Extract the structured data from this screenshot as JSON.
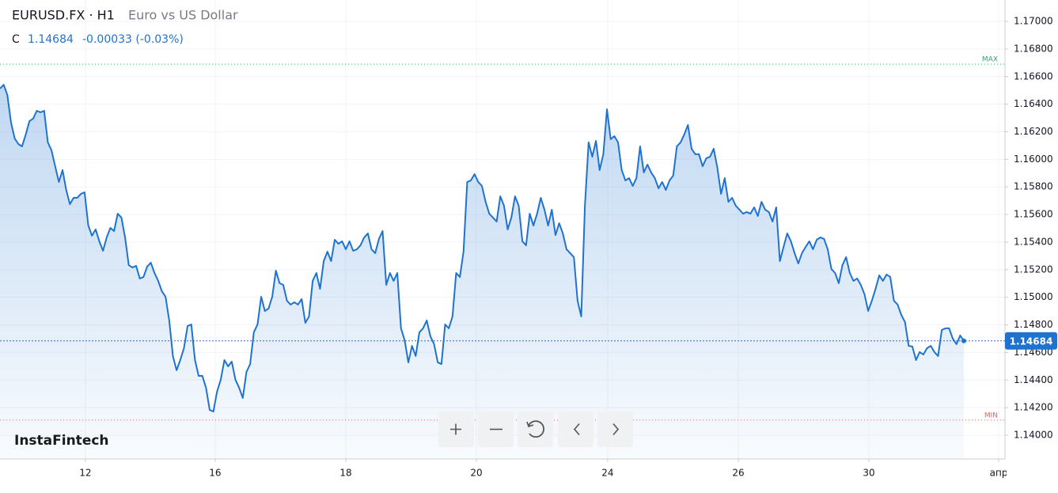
{
  "header": {
    "symbol": "EURUSD.FX · H1",
    "description": "Euro vs US Dollar",
    "close_label": "C",
    "close": "1.14684",
    "change": "-0.00033 (-0.03%)",
    "brand": "InstaFintech"
  },
  "chart_data": {
    "type": "line",
    "color": "#1f73d0",
    "values": [
      1.16513,
      1.16541,
      1.16467,
      1.16266,
      1.16151,
      1.16111,
      1.16094,
      1.1618,
      1.16277,
      1.16295,
      1.16352,
      1.16341,
      1.16352,
      1.16123,
      1.16065,
      1.1595,
      1.15836,
      1.15922,
      1.15778,
      1.15675,
      1.15721,
      1.15721,
      1.1575,
      1.15761,
      1.1552,
      1.15446,
      1.15492,
      1.15406,
      1.15337,
      1.15434,
      1.15503,
      1.1548,
      1.15606,
      1.15578,
      1.15434,
      1.15233,
      1.15216,
      1.15228,
      1.15136,
      1.15147,
      1.15222,
      1.15251,
      1.15176,
      1.15119,
      1.15044,
      1.15004,
      1.14832,
      1.14574,
      1.14471,
      1.14545,
      1.14631,
      1.14792,
      1.14803,
      1.14545,
      1.1443,
      1.1443,
      1.14344,
      1.14184,
      1.14172,
      1.14316,
      1.14402,
      1.14545,
      1.14499,
      1.14534,
      1.14402,
      1.14344,
      1.1427,
      1.14459,
      1.14516,
      1.14746,
      1.14803,
      1.15004,
      1.14901,
      1.14918,
      1.15004,
      1.15193,
      1.15102,
      1.1509,
      1.14975,
      1.14947,
      1.14964,
      1.14947,
      1.14987,
      1.14815,
      1.14861,
      1.15119,
      1.15176,
      1.15061,
      1.15262,
      1.15331,
      1.15262,
      1.15417,
      1.15388,
      1.15406,
      1.15348,
      1.15406,
      1.15337,
      1.15348,
      1.15377,
      1.15434,
      1.15463,
      1.15348,
      1.1532,
      1.15423,
      1.1548,
      1.1509,
      1.15176,
      1.15119,
      1.15176,
      1.14775,
      1.14689,
      1.14528,
      1.14648,
      1.14574,
      1.14746,
      1.14775,
      1.14832,
      1.14717,
      1.1466,
      1.14528,
      1.14516,
      1.14803,
      1.14775,
      1.14861,
      1.15176,
      1.15147,
      1.15331,
      1.15836,
      1.15847,
      1.15893,
      1.15836,
      1.15807,
      1.15692,
      1.15606,
      1.15578,
      1.15549,
      1.15732,
      1.15664,
      1.15492,
      1.15578,
      1.15732,
      1.15664,
      1.15406,
      1.15377,
      1.15606,
      1.1552,
      1.15606,
      1.15721,
      1.15635,
      1.1552,
      1.15635,
      1.15451,
      1.15537,
      1.15463,
      1.15348,
      1.1532,
      1.15291,
      1.14975,
      1.14861,
      1.15664,
      1.16123,
      1.16019,
      1.16134,
      1.15922,
      1.16037,
      1.16363,
      1.16146,
      1.16168,
      1.16123,
      1.15922,
      1.15847,
      1.15864,
      1.15807,
      1.15864,
      1.16094,
      1.15905,
      1.15962,
      1.15905,
      1.15864,
      1.1579,
      1.15836,
      1.15778,
      1.15847,
      1.15882,
      1.16094,
      1.16123,
      1.1618,
      1.16249,
      1.16077,
      1.16037,
      1.16037,
      1.1595,
      1.16008,
      1.16019,
      1.16077,
      1.15939,
      1.1575,
      1.15864,
      1.15692,
      1.15721,
      1.15664,
      1.15635,
      1.15606,
      1.15618,
      1.15606,
      1.15652,
      1.15589,
      1.15692,
      1.15635,
      1.15618,
      1.15549,
      1.15652,
      1.15262,
      1.15365,
      1.15463,
      1.15406,
      1.1532,
      1.15245,
      1.1532,
      1.15365,
      1.15406,
      1.15348,
      1.15417,
      1.15434,
      1.15423,
      1.15348,
      1.15205,
      1.15176,
      1.15102,
      1.15233,
      1.15291,
      1.15176,
      1.15119,
      1.15136,
      1.1509,
      1.15021,
      1.14901,
      1.14975,
      1.15061,
      1.15159,
      1.15119,
      1.15165,
      1.15147,
      1.14975,
      1.14947,
      1.14872,
      1.14821,
      1.14648,
      1.14643,
      1.14545,
      1.14603,
      1.14585,
      1.14631,
      1.14648,
      1.14603,
      1.14574,
      1.14763,
      1.14775,
      1.14775,
      1.147,
      1.1466,
      1.14723,
      1.14684
    ],
    "xlim": [
      0,
      273.2
    ],
    "xticks": [
      {
        "value": 23.2,
        "label": "12"
      },
      {
        "value": 58.5,
        "label": "16"
      },
      {
        "value": 94.0,
        "label": "18"
      },
      {
        "value": 129.5,
        "label": "20"
      },
      {
        "value": 165.2,
        "label": "24"
      },
      {
        "value": 200.7,
        "label": "26"
      },
      {
        "value": 236.2,
        "label": "30"
      },
      {
        "value": 271.5,
        "label": "апр"
      }
    ],
    "ylim": [
      1.13828,
      1.17155
    ],
    "yticks": [
      {
        "value": 1.14,
        "label": "1.14000"
      },
      {
        "value": 1.142,
        "label": "1.14200"
      },
      {
        "value": 1.144,
        "label": "1.14400"
      },
      {
        "value": 1.146,
        "label": "1.14600"
      },
      {
        "value": 1.148,
        "label": "1.14800"
      },
      {
        "value": 1.15,
        "label": "1.15000"
      },
      {
        "value": 1.152,
        "label": "1.15200"
      },
      {
        "value": 1.154,
        "label": "1.15400"
      },
      {
        "value": 1.156,
        "label": "1.15600"
      },
      {
        "value": 1.158,
        "label": "1.15800"
      },
      {
        "value": 1.16,
        "label": "1.16000"
      },
      {
        "value": 1.162,
        "label": "1.16200"
      },
      {
        "value": 1.164,
        "label": "1.16400"
      },
      {
        "value": 1.166,
        "label": "1.16600"
      },
      {
        "value": 1.168,
        "label": "1.16800"
      },
      {
        "value": 1.17,
        "label": "1.17000"
      }
    ],
    "grid": true,
    "last_price": 1.14684,
    "reference_lines": [
      {
        "label": "MAX",
        "value": 1.1669,
        "color": "#2ea866"
      },
      {
        "label": "MIN",
        "value": 1.1411,
        "color": "#e06666"
      }
    ]
  }
}
